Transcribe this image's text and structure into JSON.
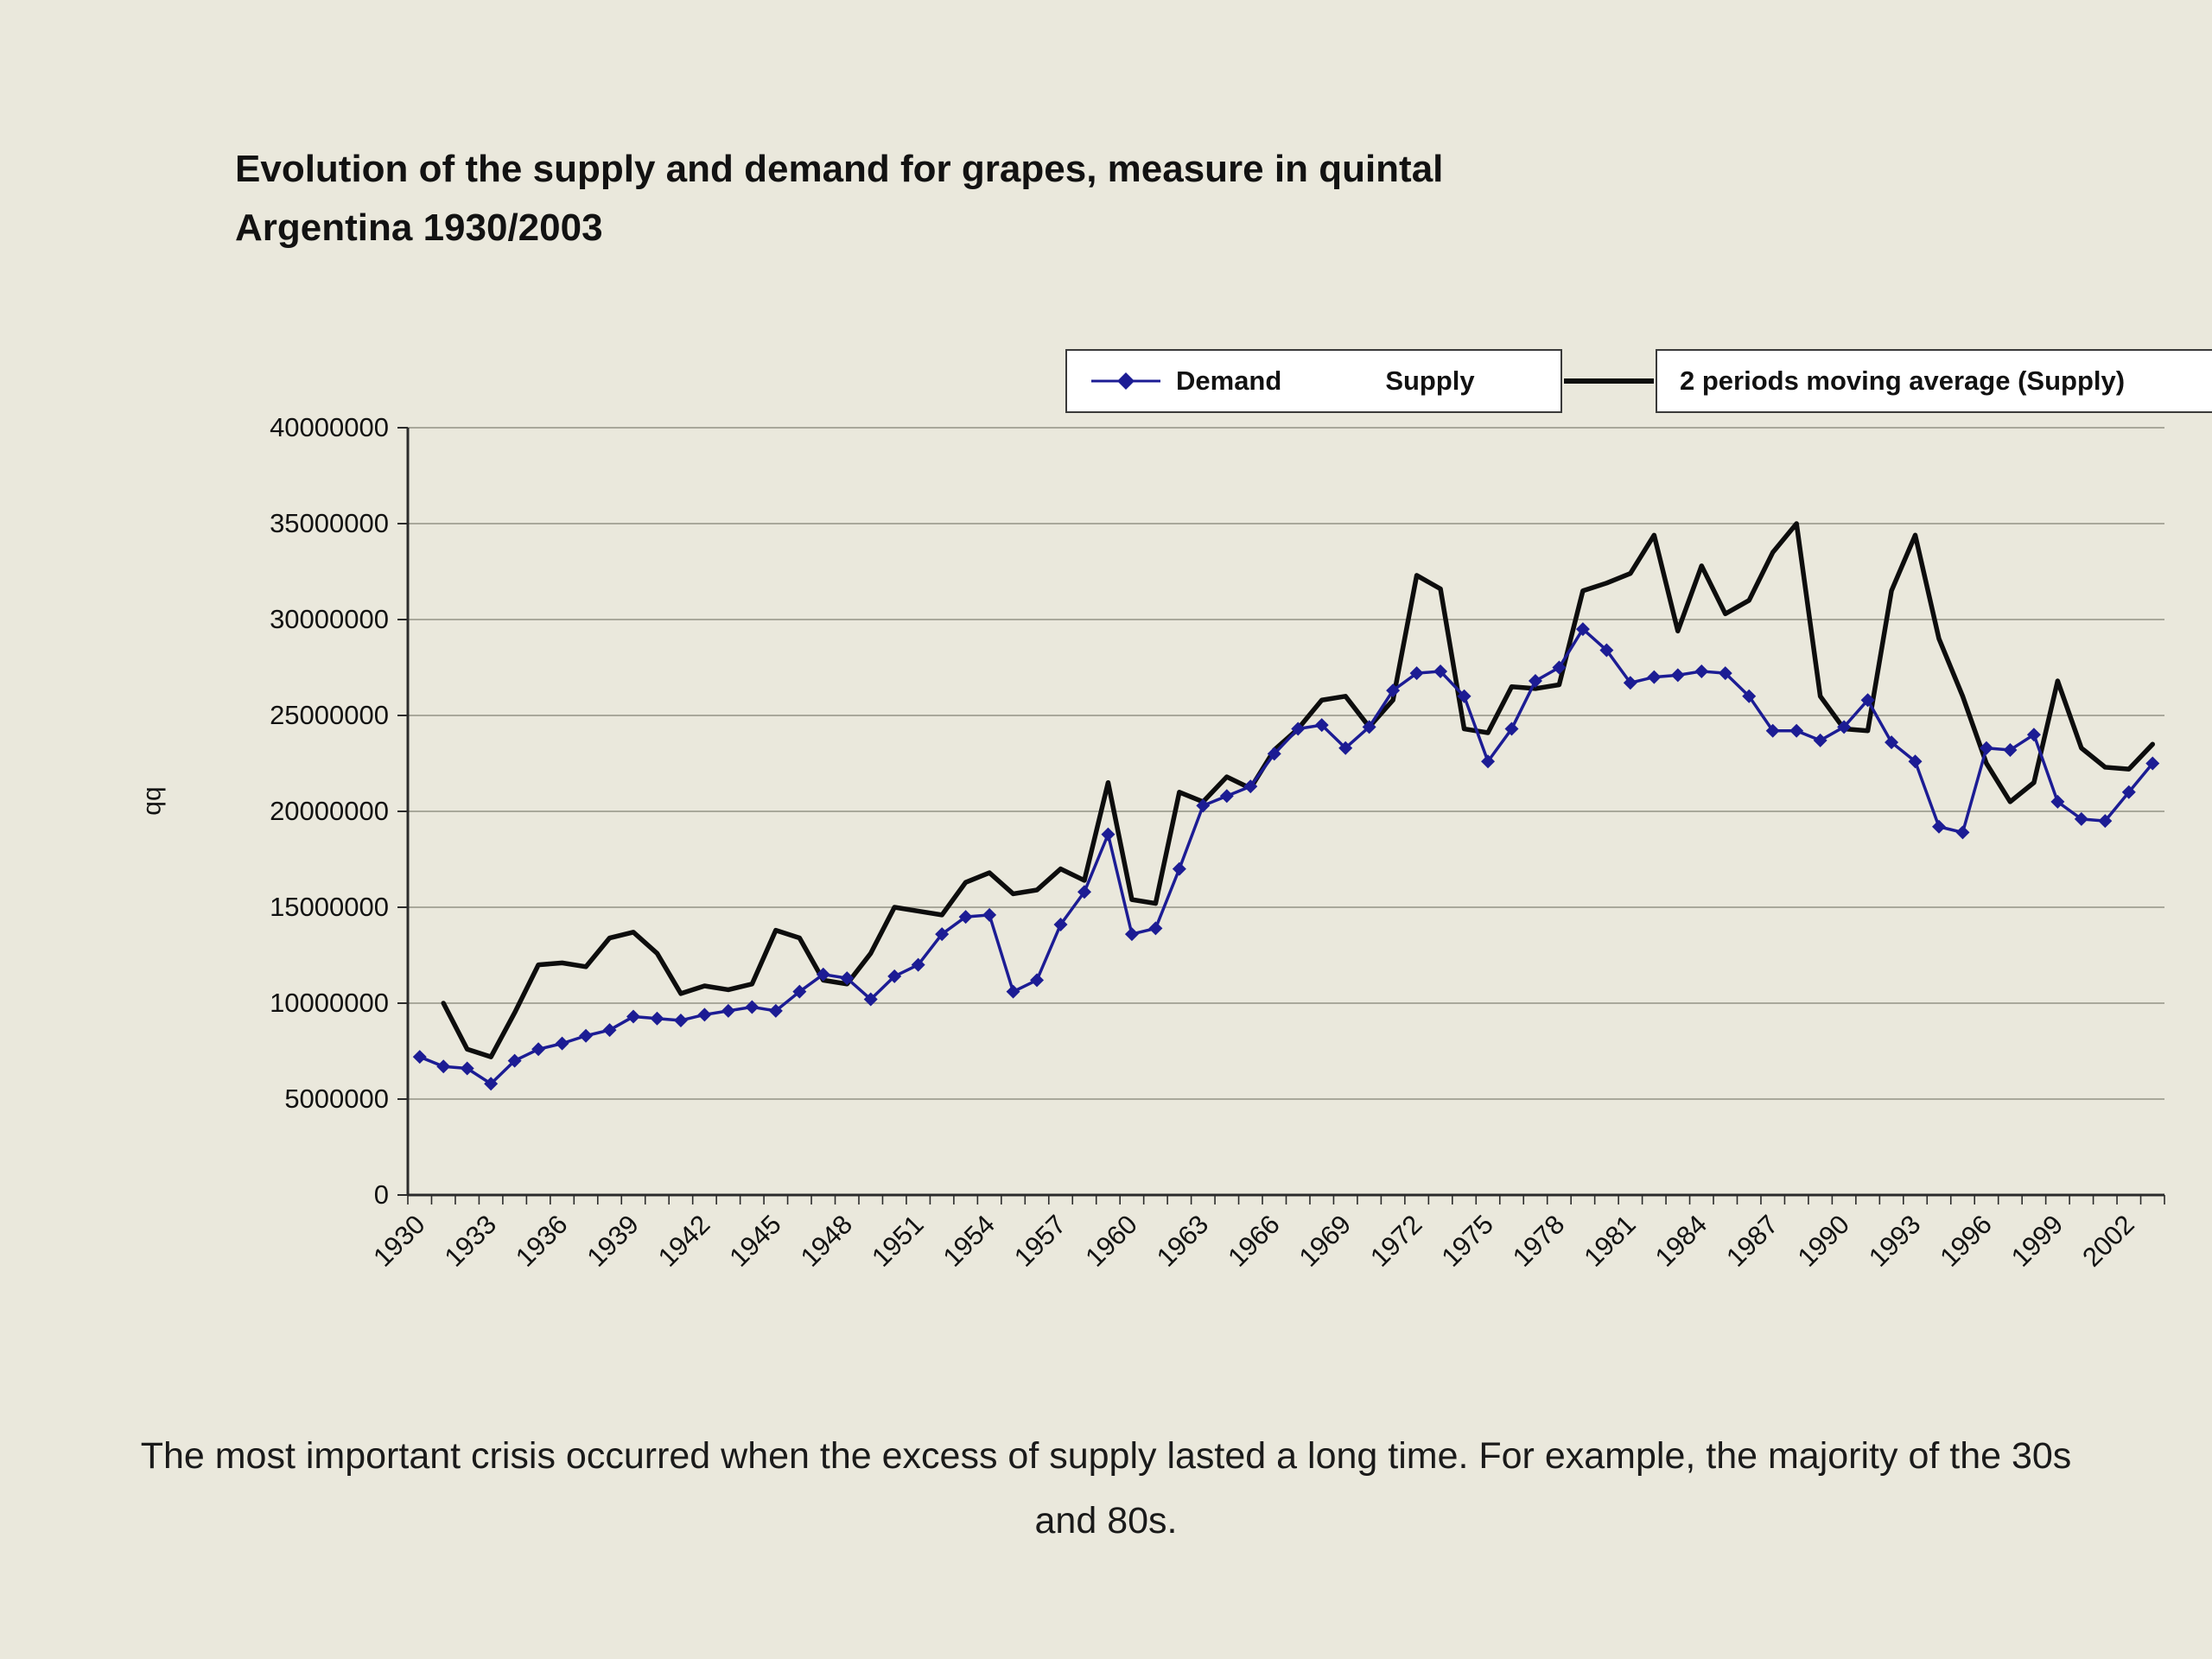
{
  "title": {
    "line1": "Evolution of the supply and demand for grapes, measure in quintal",
    "line2": "Argentina 1930/2003"
  },
  "legend": {
    "demand_label": "Demand",
    "supply_label": "Supply",
    "moving_avg_label": "2 periods  moving average (Supply)"
  },
  "caption": "The most important crisis occurred when the excess of supply lasted a long time. For example, the majority of the 30s and 80s.",
  "colors": {
    "background": "#eae8dc",
    "demand": "#1c1c94",
    "moving_average": "#0d0d0d",
    "gridline": "#a9a89b",
    "axis": "#2b2b2b",
    "legend_box_bg": "#ffffff",
    "legend_box_border": "#3a3a3a"
  },
  "chart_data": {
    "type": "line",
    "title": "Evolution of the supply and demand for grapes, measure in quintal Argentina 1930/2003",
    "xlabel": "",
    "ylabel": "qq",
    "ylim": [
      0,
      40000000
    ],
    "ytick_step": 5000000,
    "x_tick_interval": 3,
    "grid": "horizontal",
    "legend_position": "top-right",
    "categories": [
      1930,
      1931,
      1932,
      1933,
      1934,
      1935,
      1936,
      1937,
      1938,
      1939,
      1940,
      1941,
      1942,
      1943,
      1944,
      1945,
      1946,
      1947,
      1948,
      1949,
      1950,
      1951,
      1952,
      1953,
      1954,
      1955,
      1956,
      1957,
      1958,
      1959,
      1960,
      1961,
      1962,
      1963,
      1964,
      1965,
      1966,
      1967,
      1968,
      1969,
      1970,
      1971,
      1972,
      1973,
      1974,
      1975,
      1976,
      1977,
      1978,
      1979,
      1980,
      1981,
      1982,
      1983,
      1984,
      1985,
      1986,
      1987,
      1988,
      1989,
      1990,
      1991,
      1992,
      1993,
      1994,
      1995,
      1996,
      1997,
      1998,
      1999,
      2000,
      2001,
      2002,
      2003
    ],
    "series": [
      {
        "name": "Demand",
        "color": "#1c1c94",
        "marker": "diamond",
        "values": [
          7200000,
          6700000,
          6600000,
          5800000,
          7000000,
          7600000,
          7900000,
          8300000,
          8600000,
          9300000,
          9200000,
          9100000,
          9400000,
          9600000,
          9800000,
          9600000,
          10600000,
          11500000,
          11300000,
          10200000,
          11400000,
          12000000,
          13600000,
          14500000,
          14600000,
          10600000,
          11200000,
          14100000,
          15800000,
          18800000,
          13600000,
          13900000,
          17000000,
          20300000,
          20800000,
          21300000,
          23000000,
          24300000,
          24500000,
          23300000,
          24400000,
          26300000,
          27200000,
          27300000,
          26000000,
          22600000,
          24300000,
          26800000,
          27500000,
          29500000,
          28400000,
          26700000,
          27000000,
          27100000,
          27300000,
          27200000,
          26000000,
          24200000,
          24200000,
          23700000,
          24400000,
          25800000,
          23600000,
          22600000,
          19200000,
          18900000,
          23300000,
          23200000,
          24000000,
          20500000,
          19600000,
          19500000,
          21000000,
          22500000
        ]
      },
      {
        "name": "2 periods moving average (Supply)",
        "color": "#0d0d0d",
        "marker": "none",
        "values": [
          null,
          10000000,
          7600000,
          7200000,
          9500000,
          12000000,
          12100000,
          11900000,
          13400000,
          13700000,
          12600000,
          10500000,
          10900000,
          10700000,
          11000000,
          13800000,
          13400000,
          11200000,
          11000000,
          12600000,
          15000000,
          14800000,
          14600000,
          16300000,
          16800000,
          15700000,
          15900000,
          17000000,
          16400000,
          21500000,
          15400000,
          15200000,
          21000000,
          20500000,
          21800000,
          21200000,
          23200000,
          24300000,
          25800000,
          26000000,
          24400000,
          25800000,
          32300000,
          31600000,
          24300000,
          24100000,
          26500000,
          26400000,
          26600000,
          31500000,
          31900000,
          32400000,
          34400000,
          29400000,
          32800000,
          30300000,
          31000000,
          33500000,
          35000000,
          26000000,
          24300000,
          24200000,
          31500000,
          34400000,
          29000000,
          26000000,
          22500000,
          20500000,
          21500000,
          26800000,
          23300000,
          22300000,
          22200000,
          23500000
        ]
      }
    ]
  }
}
